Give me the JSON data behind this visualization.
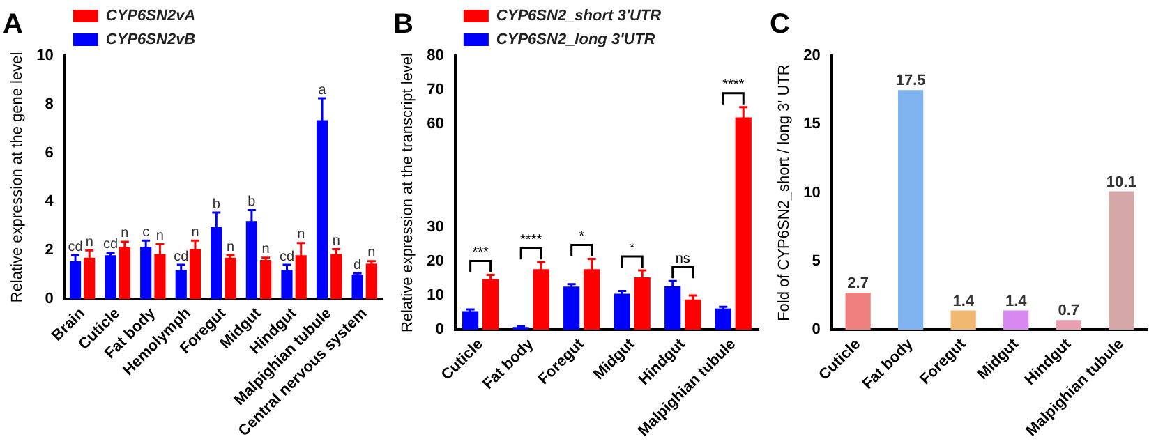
{
  "chart_data": [
    {
      "type": "bar",
      "title": "A",
      "ylabel": "Relative expression at the gene level",
      "categories": [
        "Brain",
        "Cuticle",
        "Fat body",
        "Hemolymph",
        "Foregut",
        "Midgut",
        "Hindgut",
        "Malpighian tubule",
        "Central nervous system"
      ],
      "series": [
        {
          "name": "CYP6SN2vB",
          "color": "#0000ff",
          "values": [
            1.55,
            1.8,
            2.15,
            1.2,
            2.95,
            3.2,
            1.2,
            7.35,
            1.0
          ],
          "errors": [
            0.25,
            0.1,
            0.25,
            0.2,
            0.6,
            0.45,
            0.2,
            0.9,
            0.05
          ],
          "value_labels": [
            "cd",
            "cd",
            "c",
            "cd",
            "b",
            "b",
            "cd",
            "a",
            "d"
          ]
        },
        {
          "name": "CYP6SN2vA",
          "color": "#ff0000",
          "values": [
            1.7,
            2.15,
            1.85,
            2.05,
            1.7,
            1.6,
            1.8,
            1.85,
            1.45
          ],
          "errors": [
            0.3,
            0.2,
            0.4,
            0.35,
            0.1,
            0.1,
            0.5,
            0.2,
            0.1
          ],
          "value_labels": [
            "n",
            "n",
            "n",
            "n",
            "n",
            "n",
            "n",
            "n",
            "n"
          ]
        }
      ],
      "ylim": [
        0,
        10
      ],
      "yticks": [
        0,
        2,
        4,
        6,
        8,
        10
      ],
      "legend": "top left"
    },
    {
      "type": "bar",
      "title": "B",
      "ylabel": "Relative expression at the transcript level",
      "categories": [
        "Cuticle",
        "Fat body",
        "Foregut",
        "Midgut",
        "Hindgut",
        "Malpighian tubule"
      ],
      "series": [
        {
          "name": "CYP6SN2_long 3'UTR",
          "color": "#0000ff",
          "values": [
            5.4,
            0.8,
            12.6,
            10.5,
            12.7,
            6.2
          ],
          "errors": [
            0.5,
            0.2,
            0.7,
            0.8,
            1.5,
            0.5
          ]
        },
        {
          "name": "CYP6SN2_short 3'UTR",
          "color": "#ff0000",
          "values": [
            14.8,
            17.7,
            17.7,
            15.3,
            8.8,
            62
          ],
          "errors": [
            1.2,
            2,
            3,
            2,
            1.2,
            3
          ]
        }
      ],
      "ylim": [
        0,
        80
      ],
      "yticks": [
        0,
        10,
        20,
        30,
        60,
        70,
        80
      ],
      "legend": "top left",
      "annotations": [
        "***",
        "****",
        "*",
        "*",
        "ns",
        "****"
      ]
    },
    {
      "type": "bar",
      "title": "C",
      "ylabel": "Fold of CYP6SN2_short / long 3' UTR",
      "categories": [
        "Cuticle",
        "Fat body",
        "Foregut",
        "Midgut",
        "Hindgut",
        "Malpighian tubule"
      ],
      "values": [
        2.7,
        17.5,
        1.4,
        1.4,
        0.7,
        10.1
      ],
      "colors": [
        "#f08080",
        "#80b4f0",
        "#f0b870",
        "#d888f0",
        "#e8a0b0",
        "#d4a8a8"
      ],
      "ylim": [
        0,
        20
      ],
      "yticks": [
        0,
        5,
        10,
        15,
        20
      ],
      "data_labels": true
    }
  ]
}
